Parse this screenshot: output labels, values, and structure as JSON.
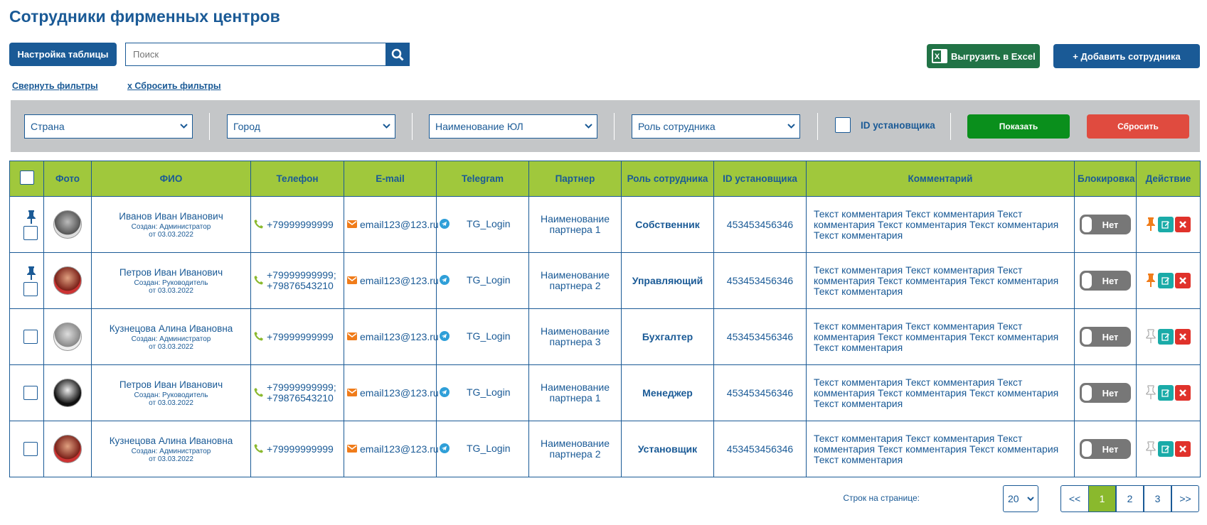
{
  "header": {
    "title": "Сотрудники фирменных центров"
  },
  "toolbar": {
    "settings_button": "Настройка таблицы",
    "search_placeholder": "Поиск",
    "export_button": "Выгрузить в Excel",
    "add_button": "+ Добавить сотрудника"
  },
  "filter_links": {
    "collapse": "Свернуть фильтры",
    "reset": "x Сбросить фильтры"
  },
  "filters": {
    "selects": [
      "Страна",
      "Город",
      "Наименование ЮЛ",
      "Роль сотрудника"
    ],
    "checkbox_label": "ID установщика",
    "show_button": "Показать",
    "reset_button": "Сбросить"
  },
  "table": {
    "columns": [
      "Фото",
      "ФИО",
      "Телефон",
      "E-mail",
      "Telegram",
      "Партнер",
      "Роль сотрудника",
      "ID установщика",
      "Комментарий",
      "Блокировка",
      "Действие"
    ],
    "rows": [
      {
        "name": "Иванов Иван Иванович",
        "created_by": "Создан: Администратор",
        "created_date": "от 03.03.2022",
        "phones": [
          "+79999999999"
        ],
        "email": "email123@123.ru",
        "telegram": "TG_Login",
        "partner": "Наименование партнера 1",
        "role": "Собственник",
        "installer_id": "453453456346",
        "comment": "Текст комментария Текст комментария Текст комментария Текст комментария Текст комментария Текст комментария",
        "block": "Нет",
        "pinned": true
      },
      {
        "name": "Петров Иван Иванович",
        "created_by": "Создан: Руководитель",
        "created_date": "от 03.03.2022",
        "phones": [
          "+79999999999;",
          "+79876543210"
        ],
        "email": "email123@123.ru",
        "telegram": "TG_Login",
        "partner": "Наименование партнера 2",
        "role": "Управляющий",
        "installer_id": "453453456346",
        "comment": "Текст комментария Текст комментария Текст комментария Текст комментария Текст комментария Текст комментария",
        "block": "Нет",
        "pinned": true
      },
      {
        "name": "Кузнецова Алина Ивановна",
        "created_by": "Создан: Администратор",
        "created_date": "от 03.03.2022",
        "phones": [
          "+79999999999"
        ],
        "email": "email123@123.ru",
        "telegram": "TG_Login",
        "partner": "Наименование партнера 3",
        "role": "Бухгалтер",
        "installer_id": "453453456346",
        "comment": "Текст комментария Текст комментария Текст комментария Текст комментария Текст комментария Текст комментария",
        "block": "Нет",
        "pinned": false
      },
      {
        "name": "Петров Иван Иванович",
        "created_by": "Создан: Руководитель",
        "created_date": "от 03.03.2022",
        "phones": [
          "+79999999999;",
          "+79876543210"
        ],
        "email": "email123@123.ru",
        "telegram": "TG_Login",
        "partner": "Наименование партнера 1",
        "role": "Менеджер",
        "installer_id": "453453456346",
        "comment": "Текст комментария Текст комментария Текст комментария Текст комментария Текст комментария Текст комментария",
        "block": "Нет",
        "pinned": false
      },
      {
        "name": "Кузнецова Алина Ивановна",
        "created_by": "Создан: Администратор",
        "created_date": "от 03.03.2022",
        "phones": [
          "+79999999999"
        ],
        "email": "email123@123.ru",
        "telegram": "TG_Login",
        "partner": "Наименование партнера 2",
        "role": "Установщик",
        "installer_id": "453453456346",
        "comment": "Текст комментария Текст комментария Текст комментария Текст комментария Текст комментария Текст комментария",
        "block": "Нет",
        "pinned": false
      }
    ]
  },
  "pagination": {
    "rows_label": "Строк на странице:",
    "page_size": "20",
    "pages": [
      "<<",
      "1",
      "2",
      "3",
      ">>"
    ],
    "current": 1
  }
}
